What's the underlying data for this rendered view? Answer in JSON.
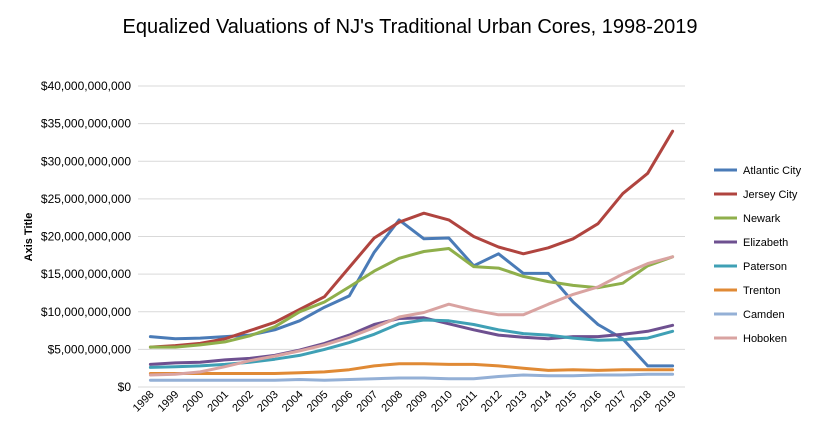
{
  "chart_data": {
    "type": "line",
    "title": "Equalized Valuations of NJ's Traditional Urban Cores, 1998-2019",
    "xlabel": "",
    "ylabel": "Axis Title",
    "ylim": [
      0,
      40000000000
    ],
    "ytick_values": [
      0,
      5000000000,
      10000000000,
      15000000000,
      20000000000,
      25000000000,
      30000000000,
      35000000000,
      40000000000
    ],
    "ytick_labels": [
      "$0",
      "$5,000,000,000",
      "$10,000,000,000",
      "$15,000,000,000",
      "$20,000,000,000",
      "$25,000,000,000",
      "$30,000,000,000",
      "$35,000,000,000",
      "$40,000,000,000"
    ],
    "grid": true,
    "legend_position": "right",
    "categories": [
      "1998",
      "1999",
      "2000",
      "2001",
      "2002",
      "2003",
      "2004",
      "2005",
      "2006",
      "2007",
      "2008",
      "2009",
      "2010",
      "2011",
      "2012",
      "2013",
      "2014",
      "2015",
      "2016",
      "2017",
      "2018",
      "2019"
    ],
    "series": [
      {
        "name": "Atlantic City",
        "color": "#4a7bb7",
        "values": [
          6700000000.0,
          6400000000.0,
          6500000000.0,
          6700000000.0,
          6900000000.0,
          7600000000.0,
          8800000000.0,
          10600000000.0,
          12100000000.0,
          17900000000.0,
          22200000000.0,
          19700000000.0,
          19800000000.0,
          16100000000.0,
          17700000000.0,
          15100000000.0,
          15100000000.0,
          11300000000.0,
          8300000000.0,
          6400000000.0,
          2800000000.0,
          2800000000.0
        ]
      },
      {
        "name": "Jersey City",
        "color": "#b0443f",
        "values": [
          5300000000.0,
          5500000000.0,
          5800000000.0,
          6400000000.0,
          7500000000.0,
          8600000000.0,
          10300000000.0,
          12000000000.0,
          15900000000.0,
          19800000000.0,
          21900000000.0,
          23100000000.0,
          22200000000.0,
          20000000000.0,
          18600000000.0,
          17700000000.0,
          18500000000.0,
          19700000000.0,
          21700000000.0,
          25700000000.0,
          28400000000.0,
          34000000000.0
        ]
      },
      {
        "name": "Newark",
        "color": "#8faf4b",
        "values": [
          5300000000.0,
          5300000000.0,
          5600000000.0,
          6000000000.0,
          6800000000.0,
          8000000000.0,
          10000000000.0,
          11300000000.0,
          13300000000.0,
          15400000000.0,
          17100000000.0,
          18000000000.0,
          18400000000.0,
          16000000000.0,
          15800000000.0,
          14700000000.0,
          14000000000.0,
          13500000000.0,
          13200000000.0,
          13800000000.0,
          16100000000.0,
          17300000000.0
        ]
      },
      {
        "name": "Elizabeth",
        "color": "#6e5090",
        "values": [
          3000000000.0,
          3200000000.0,
          3300000000.0,
          3600000000.0,
          3800000000.0,
          4200000000.0,
          4900000000.0,
          5800000000.0,
          6900000000.0,
          8300000000.0,
          9100000000.0,
          9200000000.0,
          8400000000.0,
          7600000000.0,
          6900000000.0,
          6600000000.0,
          6400000000.0,
          6700000000.0,
          6700000000.0,
          7000000000.0,
          7400000000.0,
          8200000000.0
        ]
      },
      {
        "name": "Paterson",
        "color": "#3fa0b5",
        "values": [
          2600000000.0,
          2700000000.0,
          2800000000.0,
          3000000000.0,
          3300000000.0,
          3700000000.0,
          4200000000.0,
          5000000000.0,
          5900000000.0,
          7000000000.0,
          8400000000.0,
          8900000000.0,
          8800000000.0,
          8300000000.0,
          7600000000.0,
          7100000000.0,
          6900000000.0,
          6500000000.0,
          6200000000.0,
          6300000000.0,
          6500000000.0,
          7400000000.0
        ]
      },
      {
        "name": "Trenton",
        "color": "#e08a35",
        "values": [
          1800000000.0,
          1800000000.0,
          1800000000.0,
          1800000000.0,
          1800000000.0,
          1800000000.0,
          1900000000.0,
          2000000000.0,
          2300000000.0,
          2800000000.0,
          3100000000.0,
          3100000000.0,
          3000000000.0,
          3000000000.0,
          2800000000.0,
          2500000000.0,
          2200000000.0,
          2300000000.0,
          2200000000.0,
          2300000000.0,
          2300000000.0,
          2300000000.0
        ]
      },
      {
        "name": "Camden",
        "color": "#94b0d6",
        "values": [
          900000000.0,
          900000000.0,
          900000000.0,
          900000000.0,
          900000000.0,
          900000000.0,
          1000000000.0,
          900000000.0,
          1000000000.0,
          1100000000.0,
          1200000000.0,
          1200000000.0,
          1100000000.0,
          1100000000.0,
          1400000000.0,
          1600000000.0,
          1500000000.0,
          1500000000.0,
          1600000000.0,
          1600000000.0,
          1700000000.0,
          1700000000.0
        ]
      },
      {
        "name": "Hoboken",
        "color": "#d9a3a1",
        "values": [
          1600000000.0,
          1700000000.0,
          2000000000.0,
          2700000000.0,
          3500000000.0,
          4100000000.0,
          4800000000.0,
          5600000000.0,
          6600000000.0,
          7900000000.0,
          9300000000.0,
          9900000000.0,
          11000000000.0,
          10200000000.0,
          9600000000.0,
          9600000000.0,
          11000000000.0,
          12300000000.0,
          13300000000.0,
          15000000000.0,
          16400000000.0,
          17300000000.0
        ]
      }
    ]
  }
}
